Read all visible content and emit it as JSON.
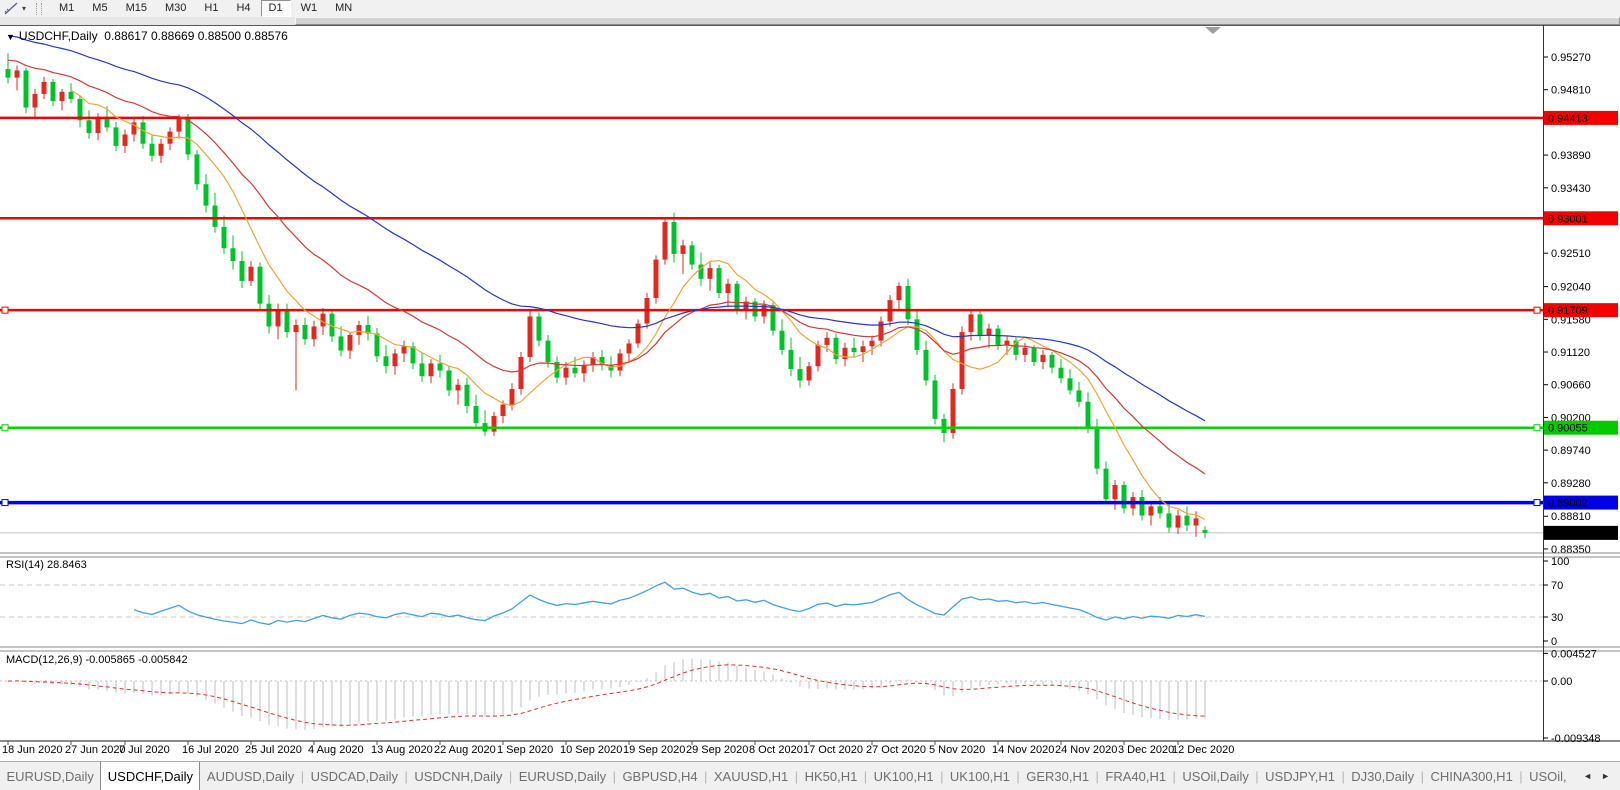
{
  "toolbar": {
    "tool_icon": "line-study-cursor-icon",
    "dropdown_glyph": "▾",
    "timeframes": [
      "M1",
      "M5",
      "M15",
      "M30",
      "H1",
      "H4",
      "D1",
      "W1",
      "MN"
    ],
    "active_timeframe": "D1"
  },
  "chart": {
    "collapse_glyph": "▼",
    "title": "USDCHF,Daily",
    "ohlc": "0.88617 0.88669 0.88500 0.88576"
  },
  "price_axis": {
    "ticks": [
      "0.95270",
      "0.94810",
      "0.93890",
      "0.93430",
      "0.92510",
      "0.92040",
      "0.91580",
      "0.91120",
      "0.90660",
      "0.90200",
      "0.89740",
      "0.89280",
      "0.88810",
      "0.88350"
    ],
    "badges": [
      {
        "label": "0.94413",
        "price": 0.94413,
        "bg": "#f40000"
      },
      {
        "label": "0.93001",
        "price": 0.93001,
        "bg": "#f40000"
      },
      {
        "label": "0.91709",
        "price": 0.91709,
        "bg": "#f40000"
      },
      {
        "label": "0.90055",
        "price": 0.90055,
        "bg": "#00cc00"
      },
      {
        "label": "0.89002",
        "price": 0.89002,
        "bg": "#0000e6"
      },
      {
        "label": "0.88576",
        "price": 0.88576,
        "bg": "#000000"
      }
    ]
  },
  "indicators": {
    "rsi": {
      "label": "RSI(14) 28.8463",
      "period": 14,
      "value": 28.8463,
      "axis_labels": [
        {
          "text": "100",
          "v": 100
        },
        {
          "text": "70",
          "v": 70
        },
        {
          "text": "30",
          "v": 30
        },
        {
          "text": "0",
          "v": 0
        }
      ],
      "dashed_levels": [
        70,
        30
      ],
      "line_color": "#429fe6"
    },
    "macd": {
      "label": "MACD(12,26,9) -0.005865 -0.005842",
      "macd_value": -0.005865,
      "signal_value": -0.005842,
      "axis_labels": [
        {
          "text": "0.004527",
          "v": 0.004527
        },
        {
          "text": "0.00",
          "v": 0
        },
        {
          "text": "-0.009348",
          "v": -0.009348
        }
      ],
      "histogram_color": "#bdbdbd",
      "signal_color": "#e03030"
    }
  },
  "date_axis": {
    "labels": [
      {
        "text": "18 Jun 2020",
        "bar": 0
      },
      {
        "text": "27 Jun 2020",
        "bar": 7
      },
      {
        "text": "7 Jul 2020",
        "bar": 13
      },
      {
        "text": "16 Jul 2020",
        "bar": 20
      },
      {
        "text": "25 Jul 2020",
        "bar": 27
      },
      {
        "text": "4 Aug 2020",
        "bar": 34
      },
      {
        "text": "13 Aug 2020",
        "bar": 41
      },
      {
        "text": "22 Aug 2020",
        "bar": 48
      },
      {
        "text": "1 Sep 2020",
        "bar": 55
      },
      {
        "text": "10 Sep 2020",
        "bar": 62
      },
      {
        "text": "19 Sep 2020",
        "bar": 69
      },
      {
        "text": "29 Sep 2020",
        "bar": 76
      },
      {
        "text": "8 Oct 2020",
        "bar": 83
      },
      {
        "text": "17 Oct 2020",
        "bar": 89
      },
      {
        "text": "27 Oct 2020",
        "bar": 96
      },
      {
        "text": "5 Nov 2020",
        "bar": 103
      },
      {
        "text": "14 Nov 2020",
        "bar": 110
      },
      {
        "text": "24 Nov 2020",
        "bar": 117
      },
      {
        "text": "3 Dec 2020",
        "bar": 124
      },
      {
        "text": "12 Dec 2020",
        "bar": 130
      }
    ]
  },
  "tabs": {
    "items": [
      "EURUSD,Daily",
      "USDCHF,Daily",
      "AUDUSD,Daily",
      "USDCAD,Daily",
      "USDCNH,Daily",
      "EURUSD,Daily",
      "GBPUSD,H4",
      "XAUUSD,H1",
      "HK50,H1",
      "UK100,H1",
      "UK100,H1",
      "GER30,H1",
      "FRA40,H1",
      "USOil,Daily",
      "USDJPY,H1",
      "DJ30,Daily",
      "CHINA300,H1",
      "USOil,"
    ],
    "active_index": 1,
    "scroll_left_glyph": "◄",
    "scroll_right_glyph": "►"
  },
  "chart_data": {
    "type": "candlestick",
    "symbol": "USDCHF",
    "timeframe": "Daily",
    "title": "USDCHF,Daily",
    "up_color": "#e02a20",
    "down_color": "#00c32b",
    "ylim": [
      0.88293,
      0.95706
    ],
    "grid": false,
    "candles": [
      [
        0.951,
        0.9532,
        0.949,
        0.9498
      ],
      [
        0.9498,
        0.9515,
        0.948,
        0.9508
      ],
      [
        0.9508,
        0.9512,
        0.9448,
        0.9456
      ],
      [
        0.9456,
        0.9482,
        0.9442,
        0.9475
      ],
      [
        0.9475,
        0.9499,
        0.9468,
        0.9492
      ],
      [
        0.9492,
        0.9496,
        0.9458,
        0.9465
      ],
      [
        0.9465,
        0.9482,
        0.9452,
        0.9478
      ],
      [
        0.9478,
        0.949,
        0.9462,
        0.9468
      ],
      [
        0.9468,
        0.9473,
        0.9428,
        0.9438
      ],
      [
        0.9438,
        0.9452,
        0.9412,
        0.942
      ],
      [
        0.942,
        0.9448,
        0.941,
        0.9442
      ],
      [
        0.9442,
        0.9458,
        0.9422,
        0.9428
      ],
      [
        0.9428,
        0.9436,
        0.9395,
        0.9402
      ],
      [
        0.9402,
        0.9425,
        0.9392,
        0.9418
      ],
      [
        0.9418,
        0.9441,
        0.9408,
        0.9435
      ],
      [
        0.9435,
        0.9444,
        0.9398,
        0.9405
      ],
      [
        0.9405,
        0.9418,
        0.938,
        0.9388
      ],
      [
        0.9388,
        0.9412,
        0.9378,
        0.9405
      ],
      [
        0.9405,
        0.9428,
        0.9396,
        0.9422
      ],
      [
        0.9422,
        0.9446,
        0.9412,
        0.944
      ],
      [
        0.944,
        0.9447,
        0.9382,
        0.939
      ],
      [
        0.939,
        0.9396,
        0.934,
        0.9348
      ],
      [
        0.9348,
        0.9362,
        0.9308,
        0.9318
      ],
      [
        0.9318,
        0.9336,
        0.928,
        0.9288
      ],
      [
        0.9288,
        0.9304,
        0.925,
        0.9258
      ],
      [
        0.9258,
        0.9276,
        0.9228,
        0.924
      ],
      [
        0.924,
        0.9254,
        0.9202,
        0.9212
      ],
      [
        0.9212,
        0.924,
        0.9205,
        0.9232
      ],
      [
        0.9232,
        0.9238,
        0.9172,
        0.918
      ],
      [
        0.918,
        0.9192,
        0.9138,
        0.9148
      ],
      [
        0.9148,
        0.918,
        0.913,
        0.9172
      ],
      [
        0.9172,
        0.918,
        0.9132,
        0.914
      ],
      [
        0.914,
        0.9158,
        0.9058,
        0.915
      ],
      [
        0.915,
        0.916,
        0.9122,
        0.913
      ],
      [
        0.913,
        0.9156,
        0.912,
        0.9148
      ],
      [
        0.9148,
        0.9174,
        0.9136,
        0.9166
      ],
      [
        0.9166,
        0.917,
        0.9126,
        0.9134
      ],
      [
        0.9134,
        0.9148,
        0.9106,
        0.9114
      ],
      [
        0.9114,
        0.914,
        0.9102,
        0.9136
      ],
      [
        0.9136,
        0.9156,
        0.9122,
        0.915
      ],
      [
        0.915,
        0.9163,
        0.9128,
        0.9138
      ],
      [
        0.9138,
        0.9146,
        0.9098,
        0.9106
      ],
      [
        0.9106,
        0.9122,
        0.9082,
        0.9092
      ],
      [
        0.9092,
        0.9116,
        0.908,
        0.911
      ],
      [
        0.911,
        0.9128,
        0.9098,
        0.912
      ],
      [
        0.912,
        0.9126,
        0.9088,
        0.9096
      ],
      [
        0.9096,
        0.9112,
        0.907,
        0.9078
      ],
      [
        0.9078,
        0.9102,
        0.9068,
        0.9096
      ],
      [
        0.9096,
        0.9108,
        0.9076,
        0.9086
      ],
      [
        0.9086,
        0.9092,
        0.905,
        0.9058
      ],
      [
        0.9058,
        0.9074,
        0.9038,
        0.9066
      ],
      [
        0.9066,
        0.9076,
        0.9026,
        0.9036
      ],
      [
        0.9036,
        0.9052,
        0.9004,
        0.9012
      ],
      [
        0.9012,
        0.903,
        0.8994,
        0.9
      ],
      [
        0.9,
        0.9028,
        0.8994,
        0.9022
      ],
      [
        0.9022,
        0.9044,
        0.9012,
        0.9038
      ],
      [
        0.9038,
        0.9068,
        0.903,
        0.906
      ],
      [
        0.906,
        0.9112,
        0.9052,
        0.9105
      ],
      [
        0.9105,
        0.917,
        0.9098,
        0.9162
      ],
      [
        0.9162,
        0.9168,
        0.912,
        0.9128
      ],
      [
        0.9128,
        0.9136,
        0.909,
        0.9098
      ],
      [
        0.9098,
        0.9106,
        0.9068,
        0.9076
      ],
      [
        0.9076,
        0.9098,
        0.9066,
        0.909
      ],
      [
        0.909,
        0.9105,
        0.9076,
        0.9082
      ],
      [
        0.9082,
        0.91,
        0.907,
        0.9094
      ],
      [
        0.9094,
        0.9112,
        0.9084,
        0.9105
      ],
      [
        0.9105,
        0.9115,
        0.9086,
        0.9094
      ],
      [
        0.9094,
        0.9106,
        0.9076,
        0.9086
      ],
      [
        0.9086,
        0.9116,
        0.9078,
        0.911
      ],
      [
        0.911,
        0.913,
        0.9098,
        0.9124
      ],
      [
        0.9124,
        0.9158,
        0.9118,
        0.9152
      ],
      [
        0.9152,
        0.9195,
        0.9145,
        0.9188
      ],
      [
        0.9188,
        0.9248,
        0.918,
        0.9242
      ],
      [
        0.9242,
        0.9302,
        0.9235,
        0.9295
      ],
      [
        0.9295,
        0.9308,
        0.9238,
        0.925
      ],
      [
        0.925,
        0.927,
        0.9222,
        0.9262
      ],
      [
        0.9262,
        0.9268,
        0.9228,
        0.9235
      ],
      [
        0.9235,
        0.9252,
        0.9205,
        0.9215
      ],
      [
        0.9215,
        0.9238,
        0.9198,
        0.923
      ],
      [
        0.923,
        0.9235,
        0.9188,
        0.9195
      ],
      [
        0.9195,
        0.9215,
        0.9175,
        0.9208
      ],
      [
        0.9208,
        0.9212,
        0.9165,
        0.9172
      ],
      [
        0.9172,
        0.919,
        0.9158,
        0.9183
      ],
      [
        0.9183,
        0.9188,
        0.9155,
        0.9162
      ],
      [
        0.9162,
        0.9185,
        0.9152,
        0.9178
      ],
      [
        0.9178,
        0.9182,
        0.9135,
        0.9142
      ],
      [
        0.9142,
        0.9158,
        0.9108,
        0.9115
      ],
      [
        0.9115,
        0.9132,
        0.9078,
        0.9088
      ],
      [
        0.9088,
        0.9105,
        0.9062,
        0.9072
      ],
      [
        0.9072,
        0.9098,
        0.9065,
        0.9092
      ],
      [
        0.9092,
        0.9128,
        0.9085,
        0.9122
      ],
      [
        0.9122,
        0.914,
        0.9112,
        0.9132
      ],
      [
        0.9132,
        0.9138,
        0.9095,
        0.9102
      ],
      [
        0.9102,
        0.9125,
        0.9092,
        0.9118
      ],
      [
        0.9118,
        0.9132,
        0.9105,
        0.9112
      ],
      [
        0.9112,
        0.9128,
        0.9098,
        0.912
      ],
      [
        0.912,
        0.9135,
        0.9108,
        0.9128
      ],
      [
        0.9128,
        0.9162,
        0.912,
        0.9155
      ],
      [
        0.9155,
        0.9192,
        0.9148,
        0.9185
      ],
      [
        0.9185,
        0.921,
        0.9172,
        0.9205
      ],
      [
        0.9205,
        0.9215,
        0.915,
        0.9158
      ],
      [
        0.9158,
        0.9172,
        0.9108,
        0.9115
      ],
      [
        0.9115,
        0.9128,
        0.9065,
        0.9072
      ],
      [
        0.9072,
        0.908,
        0.901,
        0.9018
      ],
      [
        0.9018,
        0.9025,
        0.8985,
        0.8998
      ],
      [
        0.8998,
        0.9068,
        0.899,
        0.906
      ],
      [
        0.906,
        0.9148,
        0.9052,
        0.914
      ],
      [
        0.914,
        0.9172,
        0.9128,
        0.9165
      ],
      [
        0.9165,
        0.917,
        0.9128,
        0.9135
      ],
      [
        0.9135,
        0.9152,
        0.9118,
        0.9145
      ],
      [
        0.9145,
        0.915,
        0.9115,
        0.9122
      ],
      [
        0.9122,
        0.9135,
        0.9108,
        0.9128
      ],
      [
        0.9128,
        0.9132,
        0.91,
        0.9108
      ],
      [
        0.9108,
        0.9125,
        0.9098,
        0.9118
      ],
      [
        0.9118,
        0.9122,
        0.9092,
        0.9098
      ],
      [
        0.9098,
        0.9115,
        0.9088,
        0.9108
      ],
      [
        0.9108,
        0.9112,
        0.9082,
        0.909
      ],
      [
        0.909,
        0.9102,
        0.9068,
        0.9075
      ],
      [
        0.9075,
        0.9088,
        0.9052,
        0.9058
      ],
      [
        0.9058,
        0.907,
        0.9035,
        0.9042
      ],
      [
        0.9042,
        0.9055,
        0.8998,
        0.9005
      ],
      [
        0.9005,
        0.9018,
        0.894,
        0.8948
      ],
      [
        0.8948,
        0.8958,
        0.8898,
        0.8905
      ],
      [
        0.8905,
        0.8932,
        0.889,
        0.8925
      ],
      [
        0.8925,
        0.893,
        0.8885,
        0.8892
      ],
      [
        0.8892,
        0.8915,
        0.8882,
        0.8908
      ],
      [
        0.8908,
        0.8918,
        0.8875,
        0.8882
      ],
      [
        0.8882,
        0.8902,
        0.8868,
        0.8895
      ],
      [
        0.8895,
        0.8908,
        0.8878,
        0.8885
      ],
      [
        0.8885,
        0.8898,
        0.8858,
        0.8865
      ],
      [
        0.8865,
        0.889,
        0.8856,
        0.8882
      ],
      [
        0.8882,
        0.8895,
        0.886,
        0.8868
      ],
      [
        0.8868,
        0.8888,
        0.8852,
        0.8878
      ],
      [
        0.88617,
        0.88669,
        0.885,
        0.88576
      ]
    ],
    "moving_averages": [
      {
        "kind": "sma",
        "period": 8,
        "color": "#eda53b",
        "seed": null
      },
      {
        "kind": "ema",
        "period": 20,
        "color": "#d13a34",
        "seed": 0.9525
      },
      {
        "kind": "ema",
        "period": 45,
        "color": "#2736c4",
        "seed": 0.956
      }
    ],
    "hlines": [
      {
        "name": "resistance-1",
        "price": 0.94413,
        "color": "#f40000",
        "width": 2.5,
        "handles": false
      },
      {
        "name": "resistance-2",
        "price": 0.93001,
        "color": "#f40000",
        "width": 2.5,
        "handles": false
      },
      {
        "name": "resistance-3",
        "price": 0.91709,
        "color": "#f40000",
        "width": 2.5,
        "handles": true
      },
      {
        "name": "support-green",
        "price": 0.90055,
        "color": "#00d500",
        "width": 2.5,
        "handles": true
      },
      {
        "name": "support-blue",
        "price": 0.89002,
        "color": "#0000f0",
        "width": 3.5,
        "handles": true
      },
      {
        "name": "bid-price-line",
        "price": 0.88576,
        "color": "#c0c0c0",
        "width": 1,
        "handles": false
      }
    ]
  }
}
